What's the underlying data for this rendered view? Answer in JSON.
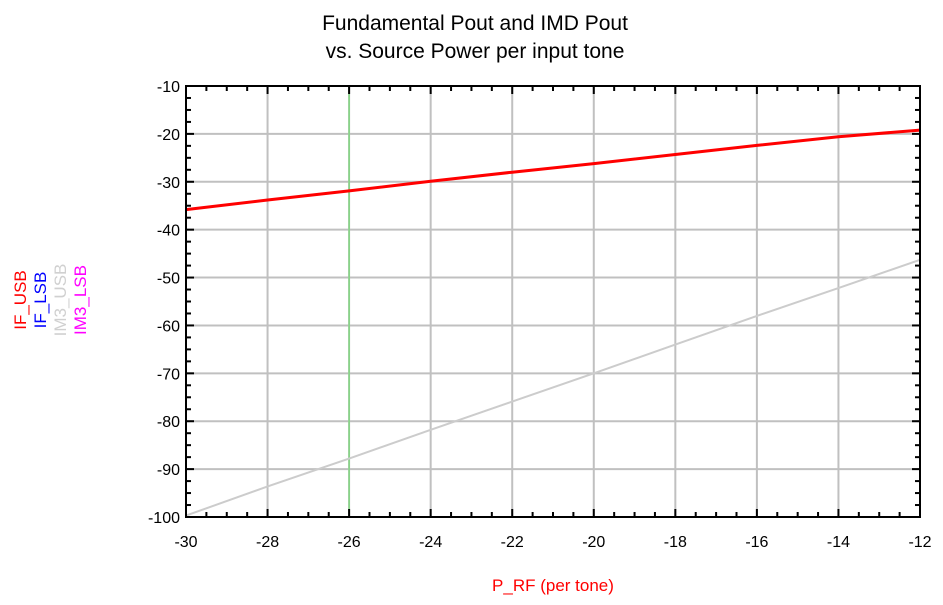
{
  "chart_data": {
    "type": "line",
    "title": [
      "Fundamental Pout and IMD Pout",
      "vs.  Source Power per input tone"
    ],
    "xlabel": "P_RF (per tone)",
    "ylabel_entries": [
      {
        "name": "IF_USB",
        "color": "#ff0000"
      },
      {
        "name": "IF_LSB",
        "color": "#0000ff"
      },
      {
        "name": "IM3_USB",
        "color": "#d0d0d0"
      },
      {
        "name": "IM3_LSB",
        "color": "#ff00ff"
      }
    ],
    "xlim": [
      -30,
      -12
    ],
    "ylim": [
      -100,
      -10
    ],
    "x_ticks": [
      -30,
      -28,
      -26,
      -24,
      -22,
      -20,
      -18,
      -16,
      -14,
      -12
    ],
    "y_ticks": [
      -10,
      -20,
      -30,
      -40,
      -50,
      -60,
      -70,
      -80,
      -90,
      -100
    ],
    "grid": true,
    "marker_x": -26,
    "series": [
      {
        "name": "IF_USB",
        "color": "#ff0000",
        "width": 3,
        "x": [
          -30,
          -28,
          -26,
          -24,
          -22,
          -20,
          -18,
          -16,
          -14,
          -12
        ],
        "y": [
          -35.8,
          -33.8,
          -31.9,
          -29.9,
          -28,
          -26.2,
          -24.3,
          -22.4,
          -20.6,
          -19.2
        ]
      },
      {
        "name": "IM3_USB",
        "color": "#cccccc",
        "width": 2,
        "x": [
          -30,
          -28,
          -26,
          -24,
          -22,
          -20,
          -18,
          -16,
          -14,
          -12
        ],
        "y": [
          -99.7,
          -93.6,
          -87.8,
          -81.8,
          -75.9,
          -70,
          -64,
          -58,
          -52.2,
          -46.3
        ]
      }
    ]
  }
}
